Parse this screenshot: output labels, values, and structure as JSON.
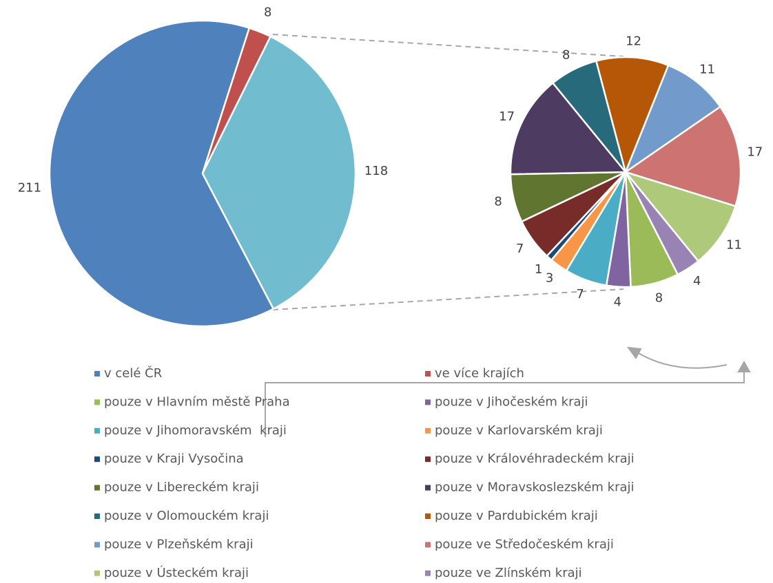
{
  "chart_data": [
    {
      "type": "pie",
      "categories": [
        "v celé ČR",
        "ve více krajích",
        null
      ],
      "values": [
        211,
        8,
        118
      ],
      "colors": [
        "#4f81bd",
        "#c0504d",
        "#72bcd0"
      ]
    },
    {
      "type": "pie",
      "categories": [
        "pouze v Hlavním městě Praha",
        "pouze v Jihočeském kraji",
        "pouze v Jihomoravském  kraji",
        "pouze v Karlovarském kraji",
        "pouze v Kraji Vysočina",
        "pouze v Královéhradeckém kraji",
        "pouze v Libereckém kraji",
        "pouze v Moravskoslezském kraji",
        "pouze v Olomouckém kraji",
        "pouze v Pardubickém kraji",
        "pouze v Plzeňském kraji",
        "pouze ve Středočeském kraji",
        "pouze v Ústeckém kraji",
        "pouze ve Zlínském kraji"
      ],
      "values": [
        8,
        4,
        7,
        3,
        1,
        7,
        8,
        17,
        8,
        12,
        11,
        17,
        11,
        4
      ],
      "colors": [
        "#9bbb59",
        "#8064a2",
        "#4bacc6",
        "#f79646",
        "#1f497d",
        "#772c2a",
        "#5f7530",
        "#4d3b62",
        "#276a7c",
        "#b65708",
        "#729aca",
        "#cd7371",
        "#afc97a",
        "#9983b5"
      ]
    }
  ]
}
